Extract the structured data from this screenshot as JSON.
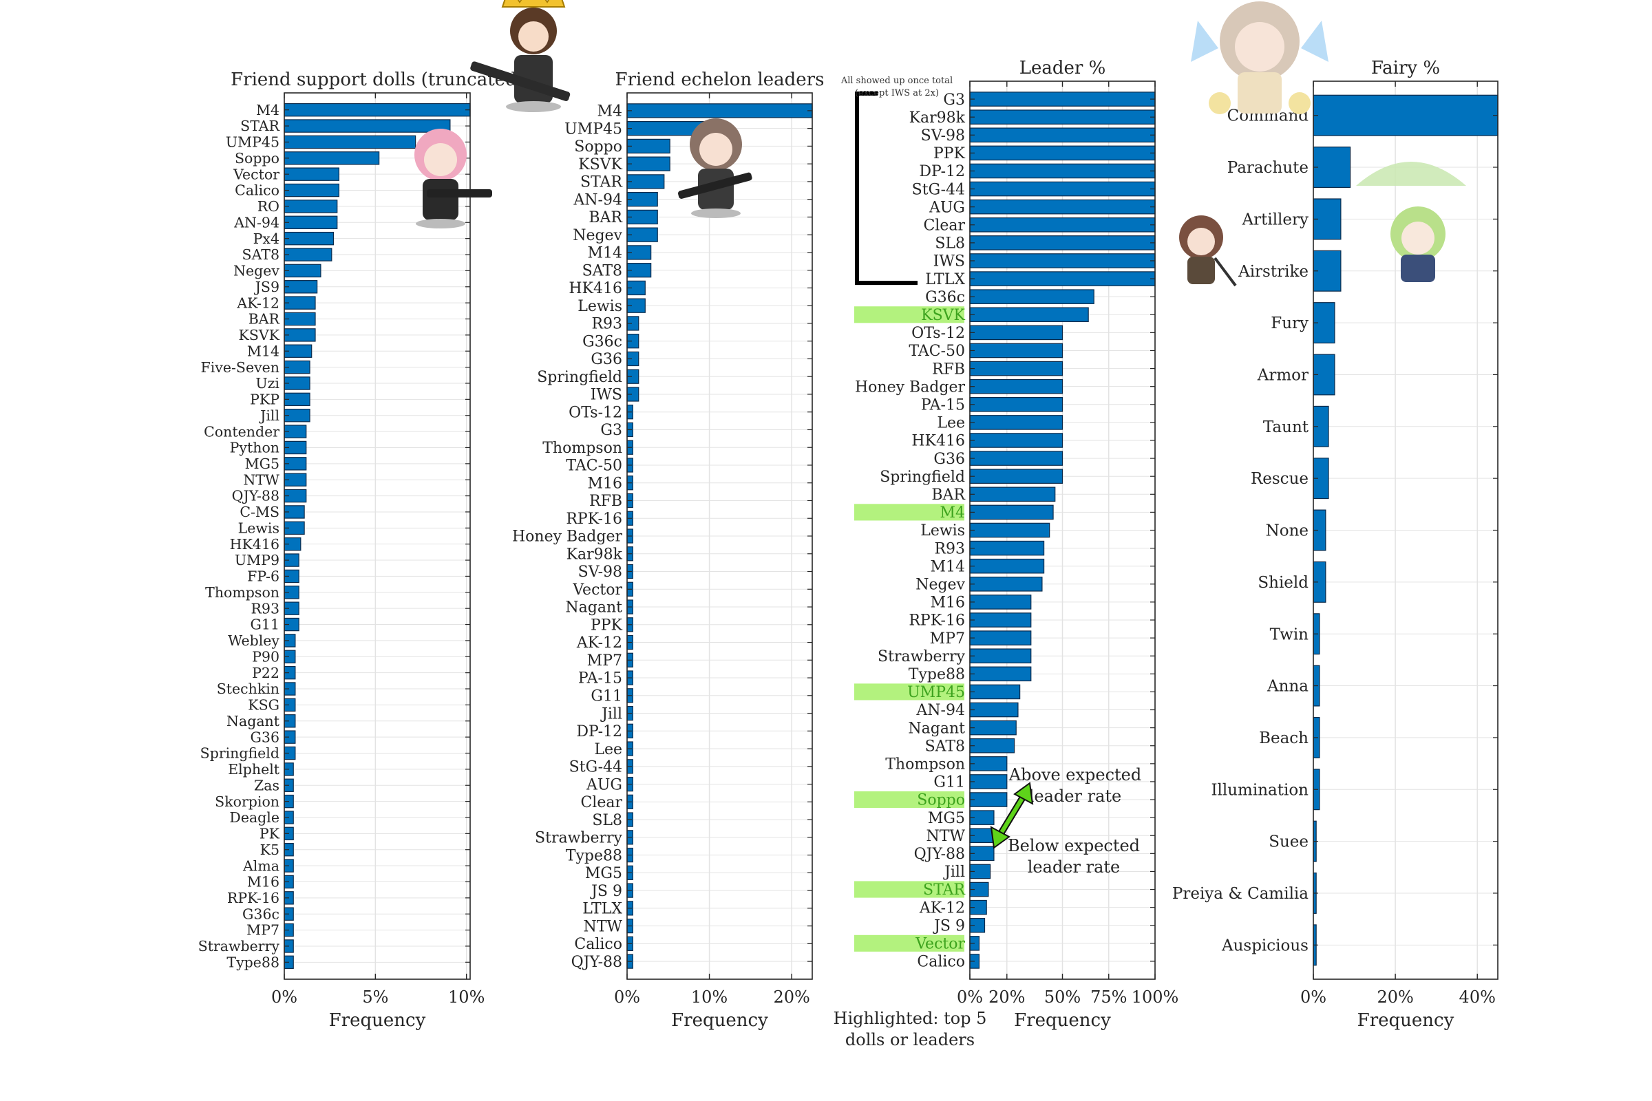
{
  "chart_data": [
    {
      "type": "bar",
      "orientation": "horizontal",
      "title": "Friend support dolls (truncated)",
      "xlabel": "Frequency",
      "xlim": [
        0,
        10.2
      ],
      "xticks": [
        0,
        5,
        10
      ],
      "xtick_labels": [
        "0%",
        "5%",
        "10%"
      ],
      "grid": true,
      "categories": [
        "M4",
        "STAR",
        "UMP45",
        "Soppo",
        "Vector",
        "Calico",
        "RO",
        "AN-94",
        "Px4",
        "SAT8",
        "Negev",
        "JS9",
        "AK-12",
        "BAR",
        "KSVK",
        "M14",
        "Five-Seven",
        "Uzi",
        "PKP",
        "Jill",
        "Contender",
        "Python",
        "MG5",
        "NTW",
        "QJY-88",
        "C-MS",
        "Lewis",
        "HK416",
        "UMP9",
        "FP-6",
        "Thompson",
        "R93",
        "G11",
        "Webley",
        "P90",
        "P22",
        "Stechkin",
        "KSG",
        "Nagant",
        "G36",
        "Springfield",
        "Elphelt",
        "Zas",
        "Skorpion",
        "Deagle",
        "PK",
        "K5",
        "Alma",
        "M16",
        "RPK-16",
        "G36c",
        "MP7",
        "Strawberry",
        "Type88"
      ],
      "values": [
        10.2,
        9.1,
        7.2,
        5.2,
        3.0,
        3.0,
        2.9,
        2.9,
        2.7,
        2.6,
        2.0,
        1.8,
        1.7,
        1.7,
        1.7,
        1.5,
        1.4,
        1.4,
        1.4,
        1.4,
        1.2,
        1.2,
        1.2,
        1.2,
        1.2,
        1.1,
        1.1,
        0.9,
        0.8,
        0.8,
        0.8,
        0.8,
        0.8,
        0.6,
        0.6,
        0.6,
        0.6,
        0.6,
        0.6,
        0.6,
        0.6,
        0.5,
        0.5,
        0.5,
        0.5,
        0.5,
        0.5,
        0.5,
        0.5,
        0.5,
        0.5,
        0.5,
        0.5,
        0.5
      ]
    },
    {
      "type": "bar",
      "orientation": "horizontal",
      "title": "Friend echelon leaders",
      "xlabel": "Frequency",
      "xlim": [
        0,
        22.5
      ],
      "xticks": [
        0,
        10,
        20
      ],
      "xtick_labels": [
        "0%",
        "10%",
        "20%"
      ],
      "grid": true,
      "categories": [
        "M4",
        "UMP45",
        "Soppo",
        "KSVK",
        "STAR",
        "AN-94",
        "BAR",
        "Negev",
        "M14",
        "SAT8",
        "HK416",
        "Lewis",
        "R93",
        "G36c",
        "G36",
        "Springfield",
        "IWS",
        "OTs-12",
        "G3",
        "Thompson",
        "TAC-50",
        "M16",
        "RFB",
        "RPK-16",
        "Honey Badger",
        "Kar98k",
        "SV-98",
        "Vector",
        "Nagant",
        "PPK",
        "AK-12",
        "MP7",
        "PA-15",
        "G11",
        "Jill",
        "DP-12",
        "Lee",
        "StG-44",
        "AUG",
        "Clear",
        "SL8",
        "Strawberry",
        "Type88",
        "MG5",
        "JS 9",
        "LTLX",
        "NTW",
        "Calico",
        "QJY-88"
      ],
      "values": [
        22.5,
        9.8,
        5.2,
        5.2,
        4.5,
        3.7,
        3.7,
        3.7,
        2.9,
        2.9,
        2.2,
        2.2,
        1.4,
        1.4,
        1.4,
        1.4,
        1.4,
        0.7,
        0.7,
        0.7,
        0.7,
        0.7,
        0.7,
        0.7,
        0.7,
        0.7,
        0.7,
        0.7,
        0.7,
        0.7,
        0.7,
        0.7,
        0.7,
        0.7,
        0.7,
        0.7,
        0.7,
        0.7,
        0.7,
        0.7,
        0.7,
        0.7,
        0.7,
        0.7,
        0.7,
        0.7,
        0.7,
        0.7,
        0.7
      ]
    },
    {
      "type": "bar",
      "orientation": "horizontal",
      "title": "Leader %",
      "xlabel": "Frequency",
      "xlim": [
        0,
        100
      ],
      "xticks": [
        0,
        20,
        50,
        75,
        100
      ],
      "xtick_labels": [
        "0%",
        "20%",
        "50%",
        "75%",
        "100%"
      ],
      "grid": true,
      "categories": [
        "G3",
        "Kar98k",
        "SV-98",
        "PPK",
        "DP-12",
        "StG-44",
        "AUG",
        "Clear",
        "SL8",
        "IWS",
        "LTLX",
        "G36c",
        "KSVK",
        "OTs-12",
        "TAC-50",
        "RFB",
        "Honey Badger",
        "PA-15",
        "Lee",
        "HK416",
        "G36",
        "Springfield",
        "BAR",
        "M4",
        "Lewis",
        "R93",
        "M14",
        "Negev",
        "M16",
        "RPK-16",
        "MP7",
        "Strawberry",
        "Type88",
        "UMP45",
        "AN-94",
        "Nagant",
        "SAT8",
        "Thompson",
        "G11",
        "Soppo",
        "MG5",
        "NTW",
        "QJY-88",
        "Jill",
        "STAR",
        "AK-12",
        "JS 9",
        "Vector",
        "Calico"
      ],
      "values": [
        100,
        100,
        100,
        100,
        100,
        100,
        100,
        100,
        100,
        100,
        100,
        67,
        64,
        50,
        50,
        50,
        50,
        50,
        50,
        50,
        50,
        50,
        46,
        45,
        43,
        40,
        40,
        39,
        33,
        33,
        33,
        33,
        33,
        27,
        26,
        25,
        24,
        20,
        20,
        20,
        13,
        13,
        13,
        11,
        10,
        9,
        8,
        5,
        5
      ],
      "highlighted": [
        "KSVK",
        "M4",
        "UMP45",
        "Soppo",
        "STAR",
        "Vector"
      ],
      "highlight_color": "#b3f27e",
      "bracket_note_line1": "All showed up once total",
      "bracket_note_line2": "(except IWS at 2x)",
      "arrow_color": "#5ed41a",
      "above_label_line1": "Above expected",
      "above_label_line2": "leader rate",
      "below_label_line1": "Below expected",
      "below_label_line2": "leader rate",
      "footnote_line1": "Highlighted: top 5",
      "footnote_line2": "dolls or leaders"
    },
    {
      "type": "bar",
      "orientation": "horizontal",
      "title": "Fairy %",
      "xlabel": "Frequency",
      "xlim": [
        0,
        45
      ],
      "xticks": [
        0,
        20,
        40
      ],
      "xtick_labels": [
        "0%",
        "20%",
        "40%"
      ],
      "grid": true,
      "categories": [
        "Command",
        "Parachute",
        "Artillery",
        "Airstrike",
        "Fury",
        "Armor",
        "Taunt",
        "Rescue",
        "None",
        "Shield",
        "Twin",
        "Anna",
        "Beach",
        "Illumination",
        "Suee",
        "Preiya & Camilia",
        "Auspicious"
      ],
      "values": [
        45,
        9,
        6.7,
        6.7,
        5.2,
        5.2,
        3.7,
        3.7,
        3.0,
        3.0,
        1.5,
        1.5,
        1.5,
        1.5,
        0.7,
        0.7,
        0.7
      ]
    }
  ],
  "style": {
    "bar_color": "#0072bd",
    "bar_edge": "#0b2a4a",
    "axis_color": "#262626",
    "grid_color": "#e3e3e3"
  }
}
